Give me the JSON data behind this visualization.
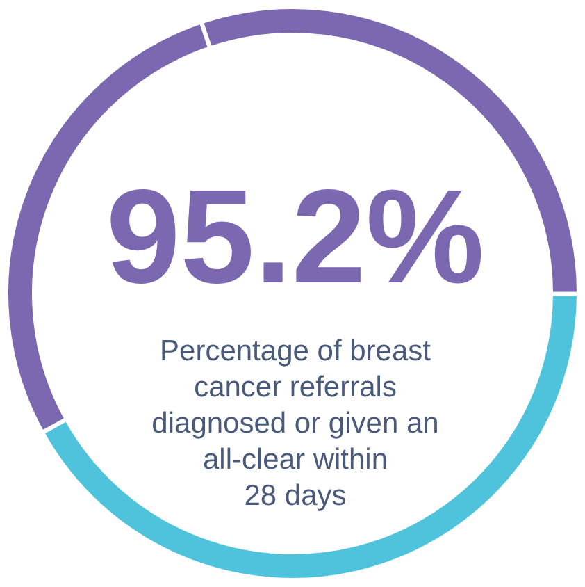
{
  "chart_data": {
    "type": "donut",
    "title": "95.2%",
    "annotations": [
      "Percentage of breast\ncancer referrals\ndiagnosed or given an\nall-clear within\n28 days"
    ],
    "categories": [
      null,
      null,
      null
    ],
    "values": [
      30.2,
      41.9,
      27.9
    ],
    "colors": [
      "#7b68b0",
      "#4fc3dc",
      "#7b68b0"
    ],
    "legend": false
  }
}
